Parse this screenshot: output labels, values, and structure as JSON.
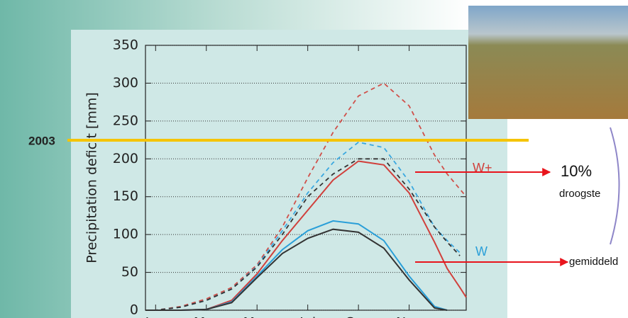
{
  "chart_data": {
    "type": "line",
    "ylabel": "Precipitation deficit [mm]",
    "x": [
      0.6,
      1,
      2,
      3,
      4,
      5,
      6,
      7,
      8,
      9,
      10,
      11,
      12,
      12.5,
      13,
      13.25
    ],
    "xlim": [
      0.6,
      13.25
    ],
    "xticks": [
      {
        "value": 1,
        "label": "Jan"
      },
      {
        "value": 3,
        "label": "Mar"
      },
      {
        "value": 5,
        "label": "May"
      },
      {
        "value": 7,
        "label": "Jul"
      },
      {
        "value": 9,
        "label": "Sep"
      },
      {
        "value": 11,
        "label": "Nov"
      }
    ],
    "ylim": [
      0,
      350
    ],
    "yticks": [
      0,
      50,
      100,
      150,
      200,
      250,
      300,
      350
    ],
    "grid": true,
    "series": [
      {
        "color": "#d0504a",
        "dashed": true,
        "values": [
          0,
          0,
          5,
          15,
          30,
          60,
          110,
          175,
          235,
          283,
          300,
          270,
          205,
          180,
          160,
          150
        ]
      },
      {
        "color": "#3aa8e0",
        "dashed": true,
        "values": [
          0,
          0,
          4,
          13,
          28,
          58,
          105,
          155,
          195,
          222,
          215,
          170,
          110,
          92,
          76,
          null
        ]
      },
      {
        "color": "#333333",
        "dashed": true,
        "values": [
          0,
          0,
          4,
          13,
          28,
          57,
          100,
          150,
          180,
          200,
          200,
          160,
          110,
          90,
          72,
          null
        ]
      },
      {
        "color": "#d0403c",
        "dashed": false,
        "values": [
          0,
          0,
          0,
          1,
          13,
          48,
          92,
          132,
          172,
          197,
          192,
          155,
          90,
          55,
          30,
          17
        ]
      },
      {
        "color": "#2a9fd8",
        "dashed": false,
        "values": [
          0,
          0,
          0,
          1,
          11,
          45,
          80,
          105,
          118,
          114,
          92,
          45,
          5,
          0,
          null,
          null
        ]
      },
      {
        "color": "#333333",
        "dashed": false,
        "values": [
          0,
          0,
          0,
          1,
          10,
          43,
          75,
          95,
          107,
          103,
          82,
          40,
          3,
          0,
          null,
          null
        ]
      }
    ],
    "annotations": [
      "2003",
      "W+",
      "W",
      "10%",
      "droogste",
      "gemiddeld"
    ]
  }
}
